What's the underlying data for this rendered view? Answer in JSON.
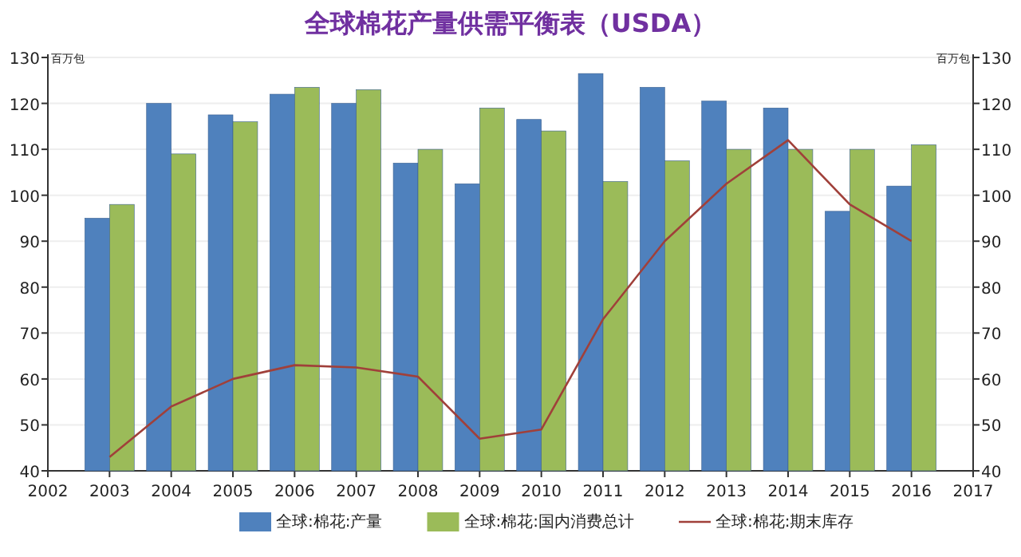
{
  "chart_data": {
    "type": "bar",
    "title": "全球棉花产量供需平衡表（USDA）",
    "ylabel": "百万包",
    "y2label": "百万包",
    "x": [
      2003,
      2004,
      2005,
      2006,
      2007,
      2008,
      2009,
      2010,
      2011,
      2012,
      2013,
      2014,
      2015,
      2016
    ],
    "series": [
      {
        "name": "全球:棉花:产量",
        "color": "#4f81bd",
        "values": [
          95,
          120,
          117.5,
          122,
          120,
          107,
          102.5,
          116.5,
          126.5,
          123.5,
          120.5,
          119,
          96.5,
          102
        ]
      },
      {
        "name": "全球:棉花:国内消费总计",
        "color": "#9bbb59",
        "values": [
          98,
          109,
          116,
          123.5,
          123,
          110,
          119,
          114,
          103,
          107.5,
          110,
          110,
          110,
          111
        ]
      },
      {
        "name": "全球:棉花:期末库存",
        "color": "#a0403a",
        "type": "line",
        "values": [
          43,
          54,
          60,
          63,
          62.5,
          60.5,
          47,
          49,
          73,
          90,
          102.5,
          112,
          98,
          90
        ]
      }
    ],
    "xlim": [
      2002,
      2017
    ],
    "xticks": [
      2002,
      2003,
      2004,
      2005,
      2006,
      2007,
      2008,
      2009,
      2010,
      2011,
      2012,
      2013,
      2014,
      2015,
      2016,
      2017
    ],
    "ylim": [
      40,
      130
    ],
    "yticks": [
      40,
      50,
      60,
      70,
      80,
      90,
      100,
      110,
      120,
      130
    ],
    "y2lim": [
      40,
      130
    ],
    "y2ticks": [
      40,
      50,
      60,
      70,
      80,
      90,
      100,
      110,
      120,
      130
    ],
    "grid": "y",
    "legend": "bottom",
    "marker": "none",
    "line_style": "solid"
  }
}
